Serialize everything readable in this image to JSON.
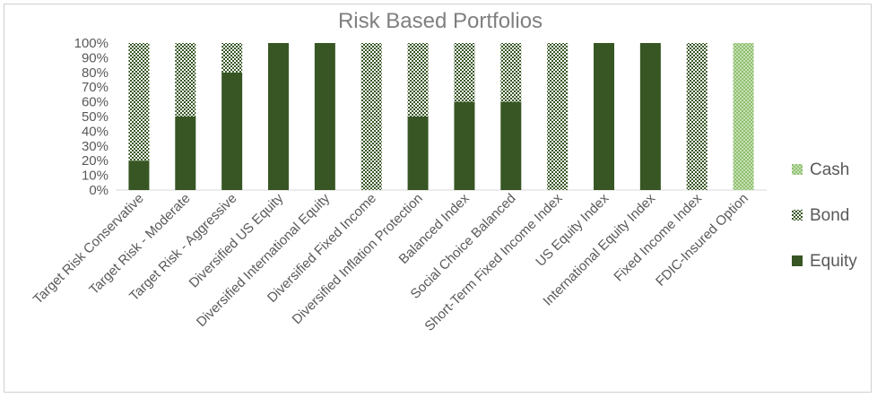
{
  "chart_data": {
    "type": "bar",
    "stacked": true,
    "title": "Risk Based Portfolios",
    "xlabel": "",
    "ylabel": "",
    "ylim": [
      0,
      1
    ],
    "yticks": [
      "0%",
      "10%",
      "20%",
      "30%",
      "40%",
      "50%",
      "60%",
      "70%",
      "80%",
      "90%",
      "100%"
    ],
    "grid": false,
    "legend_position": "right",
    "categories": [
      "Target Risk  Conservative",
      "Target Risk - Moderate",
      "Target Risk - Aggressive",
      "Diversified US Equity",
      "Diversified International Equity",
      "Diversified Fixed Income",
      "Diversified Inflation Protection",
      "Balanced Index",
      "Social Choice Balanced",
      "Short-Term Fixed Income Index",
      "US Equity Index",
      "International Equity Index",
      "Fixed Income Index",
      "FDIC-Insured Option"
    ],
    "series": [
      {
        "name": "Equity",
        "color": "#375623",
        "pattern": "solid",
        "values": [
          0.2,
          0.5,
          0.8,
          1.0,
          1.0,
          0.0,
          0.5,
          0.6,
          0.6,
          0.0,
          1.0,
          1.0,
          0.0,
          0.0
        ]
      },
      {
        "name": "Bond",
        "color": "#375623",
        "pattern": "checker",
        "values": [
          0.8,
          0.5,
          0.2,
          0.0,
          0.0,
          1.0,
          0.5,
          0.4,
          0.4,
          1.0,
          0.0,
          0.0,
          1.0,
          0.0
        ]
      },
      {
        "name": "Cash",
        "color": "#a9d08e",
        "pattern": "dots",
        "values": [
          0.0,
          0.0,
          0.0,
          0.0,
          0.0,
          0.0,
          0.0,
          0.0,
          0.0,
          0.0,
          0.0,
          0.0,
          0.0,
          1.0
        ]
      }
    ],
    "legend_order": [
      "Cash",
      "Bond",
      "Equity"
    ]
  }
}
